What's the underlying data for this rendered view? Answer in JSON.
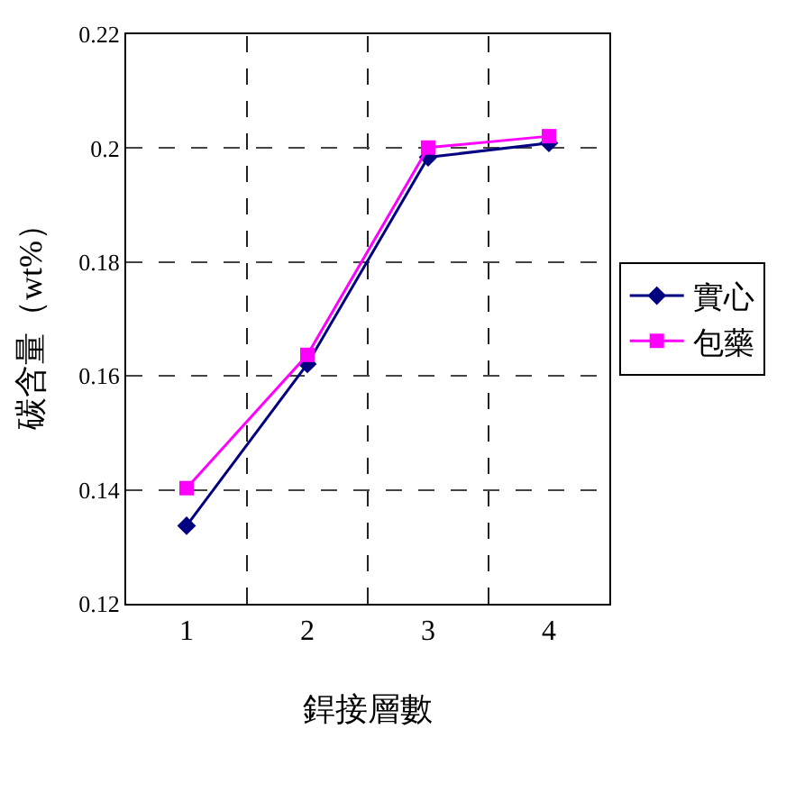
{
  "chart_data": {
    "type": "line",
    "categories": [
      "1",
      "2",
      "3",
      "4"
    ],
    "xlabel": "銲接層數",
    "ylabel": "碳含量（wt%）",
    "series": [
      {
        "name": "實心",
        "color": "#000080",
        "marker": "diamond",
        "values": [
          0.1337,
          0.1621,
          0.1984,
          0.2009
        ]
      },
      {
        "name": "包藥",
        "color": "#ff00ff",
        "marker": "square",
        "values": [
          0.1403,
          0.1637,
          0.2001,
          0.2021
        ]
      }
    ],
    "ylim": [
      0.12,
      0.22
    ],
    "yticks": [
      0.12,
      0.14,
      0.16,
      0.18,
      0.2,
      0.22
    ],
    "grid": true,
    "legend": "right",
    "line_style": "solid"
  }
}
